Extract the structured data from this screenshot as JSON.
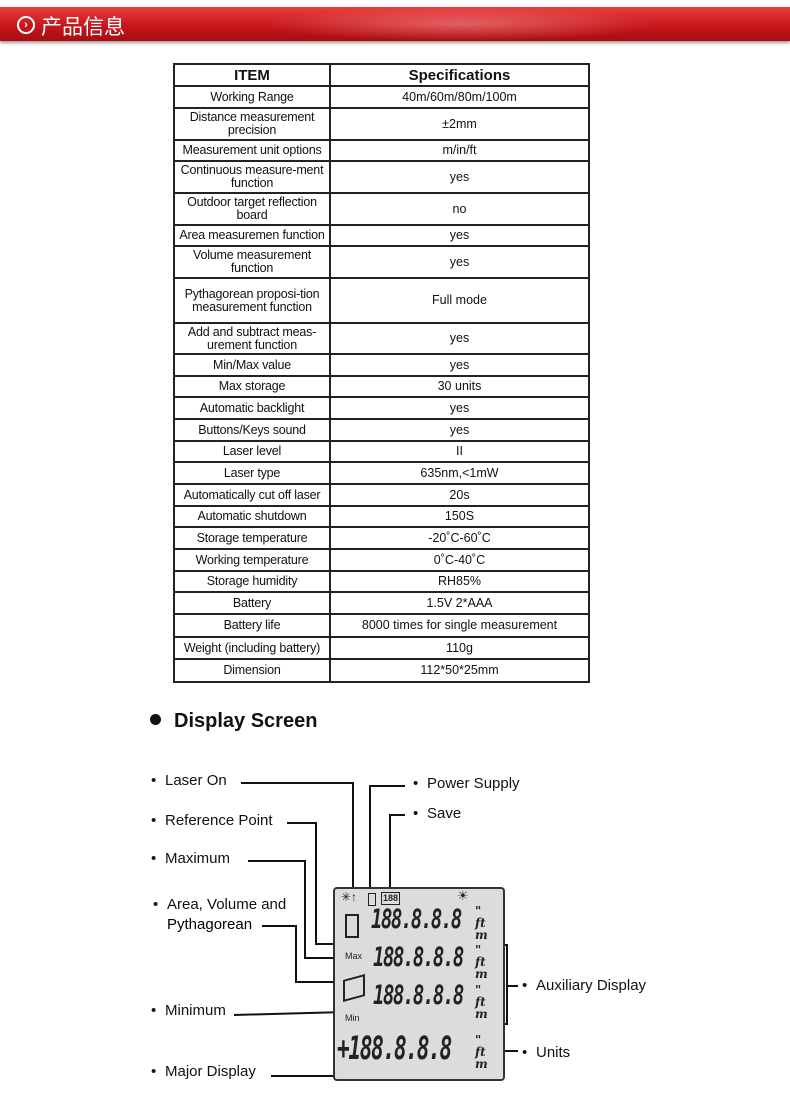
{
  "banner": {
    "title": "产品信息",
    "icon": "chevron-right-circle-icon"
  },
  "table": {
    "headers": [
      "ITEM",
      "Specifications"
    ],
    "rows": [
      [
        "Working Range",
        "40m/60m/80m/100m"
      ],
      [
        "Distance measurement precision",
        "±2mm"
      ],
      [
        "Measurement unit options",
        "m/in/ft"
      ],
      [
        "Continuous measure-ment function",
        "yes"
      ],
      [
        "Outdoor target reflection board",
        "no"
      ],
      [
        "Area measuremen function",
        "yes"
      ],
      [
        "Volume measurement function",
        "yes"
      ],
      [
        "Pythagorean proposi-tion measurement function",
        "Full mode"
      ],
      [
        "Add and subtract meas-urement function",
        "yes"
      ],
      [
        "Min/Max value",
        "yes"
      ],
      [
        "Max storage",
        "30 units"
      ],
      [
        "Automatic backlight",
        "yes"
      ],
      [
        "Buttons/Keys sound",
        "yes"
      ],
      [
        "Laser level",
        "II"
      ],
      [
        "Laser type",
        "635nm,<1mW"
      ],
      [
        "Automatically cut off laser",
        "20s"
      ],
      [
        "Automatic shutdown",
        "150S"
      ],
      [
        "Storage temperature",
        "-20˚C-60˚C"
      ],
      [
        "Working temperature",
        "0˚C-40˚C"
      ],
      [
        "Storage humidity",
        "RH85%"
      ],
      [
        "Battery",
        "1.5V 2*AAA"
      ],
      [
        "Battery life",
        "8000 times for single measurement"
      ],
      [
        "Weight (including battery)",
        "110g"
      ],
      [
        "Dimension",
        "112*50*25mm"
      ]
    ]
  },
  "display": {
    "title": "Display Screen",
    "labels": {
      "laser_on": "Laser On",
      "reference_point": "Reference Point",
      "maximum": "Maximum",
      "area_1": "Area, Volume and",
      "area_2": "Pythagorean",
      "minimum": "Minimum",
      "major": "Major Display",
      "power": "Power Supply",
      "save": "Save",
      "auxiliary": "Auxiliary Display",
      "units": "Units"
    },
    "lcd": {
      "digits": "188.8.8.8",
      "major_digits": "+188.8.8.8",
      "storage": "188",
      "max": "Max",
      "min": "Min",
      "units": "\"\nft\nm"
    }
  }
}
